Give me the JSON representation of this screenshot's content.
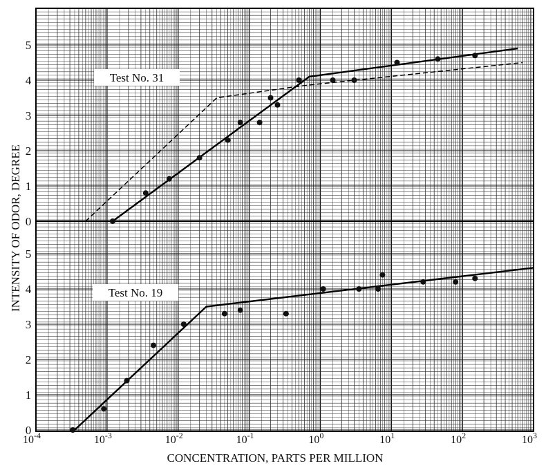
{
  "chart_data": [
    {
      "panel": "upper",
      "type": "scatter",
      "xscale": "log",
      "xlim": [
        0.0001,
        1000
      ],
      "ylim": [
        0,
        5
      ],
      "label": "Test No. 31",
      "series": [
        {
          "style": "points",
          "x": [
            0.0012,
            0.0035,
            0.0075,
            0.02,
            0.05,
            0.075,
            0.14,
            0.2,
            0.25,
            0.5,
            1.5,
            3,
            12,
            45,
            150
          ],
          "y": [
            0.0,
            0.8,
            1.2,
            1.8,
            2.3,
            2.8,
            2.8,
            3.5,
            3.3,
            4.0,
            4.0,
            4.0,
            4.5,
            4.6,
            4.7
          ]
        },
        {
          "style": "solid-line",
          "x": [
            0.0012,
            0.7,
            600
          ],
          "y": [
            0.0,
            4.1,
            4.9
          ]
        },
        {
          "style": "dashed-line",
          "x": [
            0.0005,
            0.035,
            0.6,
            700
          ],
          "y": [
            0.0,
            3.5,
            3.85,
            4.5
          ]
        }
      ]
    },
    {
      "panel": "lower",
      "type": "scatter",
      "xscale": "log",
      "xlim": [
        0.0001,
        1000
      ],
      "ylim": [
        0,
        5
      ],
      "label": "Test No. 19",
      "series": [
        {
          "style": "points",
          "x": [
            0.00033,
            0.0009,
            0.0019,
            0.0045,
            0.012,
            0.045,
            0.075,
            0.33,
            1.1,
            3.5,
            6.5,
            7.5,
            28,
            80,
            150
          ],
          "y": [
            0.0,
            0.6,
            1.4,
            2.4,
            3.0,
            3.3,
            3.4,
            3.3,
            4.0,
            4.0,
            4.0,
            4.4,
            4.2,
            4.2,
            4.3
          ]
        },
        {
          "style": "solid-line",
          "x": [
            0.00035,
            0.025,
            1000
          ],
          "y": [
            0.0,
            3.5,
            4.6
          ]
        }
      ]
    }
  ],
  "axes": {
    "ylabel": "INTENSITY OF ODOR, DEGREE",
    "xlabel": "CONCENTRATION, PARTS PER MILLION",
    "upper_yticks": [
      "0",
      "1",
      "2",
      "3",
      "4",
      "5"
    ],
    "lower_yticks": [
      "0",
      "1",
      "2",
      "3",
      "4",
      "5"
    ],
    "xtick_mantissa": "10",
    "xtick_exponents": [
      "-4",
      "-3",
      "-2",
      "-1",
      "0",
      "1",
      "2",
      "3"
    ]
  },
  "labels": {
    "test31": "Test No. 31",
    "test19": "Test No. 19"
  }
}
